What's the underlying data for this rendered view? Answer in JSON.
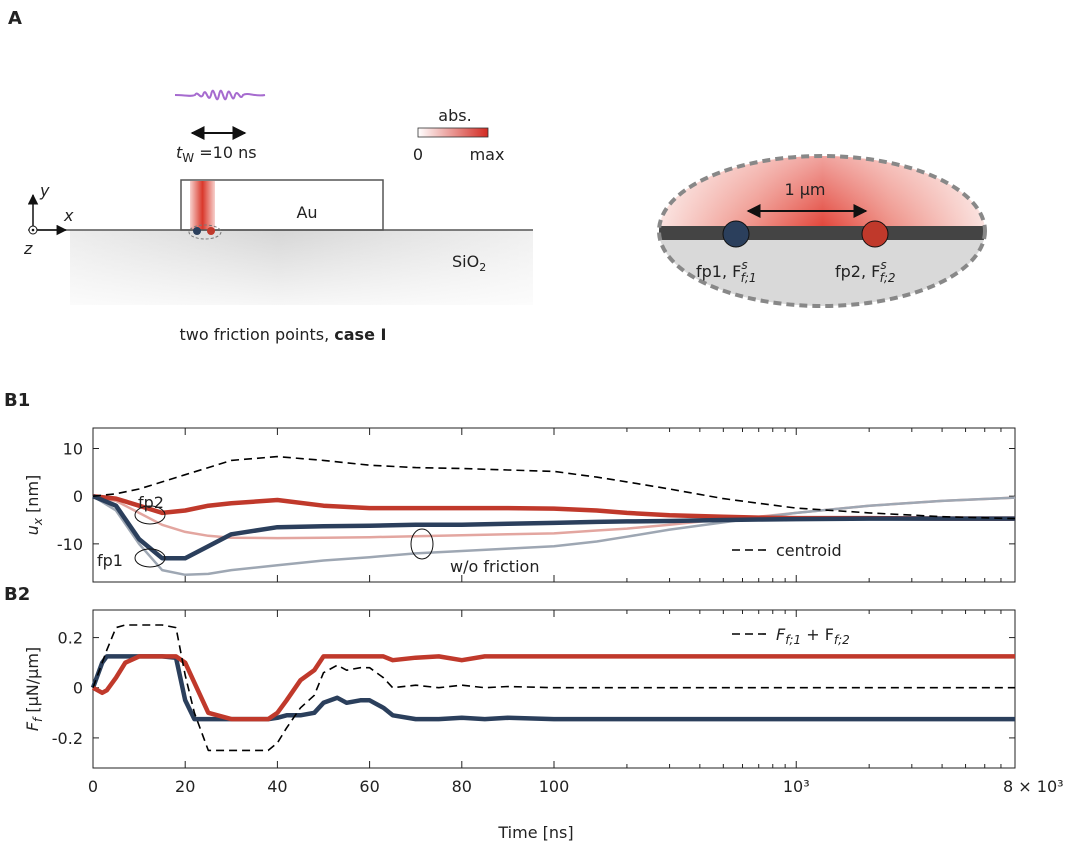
{
  "panels": {
    "a": "A",
    "b1": "B1",
    "b2": "B2"
  },
  "diagram": {
    "pulse_label": [
      "t",
      "W",
      " =10 ns"
    ],
    "colorbar_title": "abs.",
    "colorbar_min": "0",
    "colorbar_max": "max",
    "axis_x": "x",
    "axis_y": "y",
    "axis_z": "z",
    "metal": "Au",
    "substrate": [
      "SiO",
      "2"
    ],
    "caption": [
      "two friction points, ",
      "case I"
    ],
    "distance": "1 μm",
    "fp1": [
      "fp1, F",
      "s",
      "f;1"
    ],
    "fp2": [
      "fp2, F",
      "s",
      "f;2"
    ]
  },
  "chart_data": [
    {
      "type": "line",
      "ylabel": [
        "u",
        "x",
        " [nm]"
      ],
      "ylim": [
        -18,
        14.3
      ],
      "yticks": [
        -10,
        0,
        10
      ],
      "xscale": {
        "type": "linear-log",
        "break": 100
      },
      "xlim": [
        0,
        8000
      ],
      "x": [
        0,
        5,
        10,
        15,
        20,
        25,
        30,
        40,
        50,
        60,
        70,
        80,
        90,
        100,
        150,
        200,
        300,
        500,
        700,
        1000,
        2000,
        4000,
        8000
      ],
      "legend": "lower right",
      "annotations": [
        "fp2",
        "fp1",
        "w/o friction"
      ],
      "series": [
        {
          "color": "#e3a6a0",
          "width": 2.5,
          "values": [
            0,
            -1,
            -3.5,
            -6,
            -7.5,
            -8.3,
            -8.7,
            -8.8,
            -8.7,
            -8.6,
            -8.4,
            -8.2,
            -8,
            -7.8,
            -7.2,
            -6.8,
            -6,
            -4.8,
            -4.3,
            -3.5,
            -2,
            -1,
            -0.3
          ]
        },
        {
          "color": "#9ea7b3",
          "width": 2.5,
          "values": [
            0,
            -3,
            -10,
            -15.5,
            -16.5,
            -16.3,
            -15.5,
            -14.5,
            -13.5,
            -12.8,
            -12,
            -11.5,
            -11,
            -10.5,
            -9.5,
            -8.5,
            -7,
            -5.5,
            -4.5,
            -3.5,
            -2,
            -1,
            -0.3
          ]
        },
        {
          "name": "fp2",
          "color": "#c0392b",
          "width": 4.5,
          "values": [
            0,
            -0.5,
            -2,
            -3.5,
            -3,
            -2,
            -1.5,
            -0.8,
            -2,
            -2.5,
            -2.5,
            -2.5,
            -2.5,
            -2.6,
            -3,
            -3.5,
            -4,
            -4.3,
            -4.5,
            -4.6,
            -4.6,
            -4.7,
            -4.7
          ]
        },
        {
          "name": "fp1",
          "color": "#2b3f5c",
          "width": 4.5,
          "values": [
            0,
            -2,
            -9,
            -13,
            -13,
            -10.5,
            -8,
            -6.5,
            -6.3,
            -6.2,
            -6,
            -6,
            -5.8,
            -5.6,
            -5.4,
            -5.3,
            -5.2,
            -5,
            -4.9,
            -4.8,
            -4.7,
            -4.7,
            -4.7
          ]
        },
        {
          "name": "centroid",
          "color": "#000000",
          "width": 1.6,
          "dash": true,
          "values": [
            0,
            0.5,
            1.5,
            3,
            4.5,
            6,
            7.5,
            8.3,
            7.5,
            6.5,
            6,
            5.8,
            5.5,
            5.2,
            4,
            3,
            1.5,
            -0.5,
            -1.5,
            -2.5,
            -3.5,
            -4.3,
            -4.7
          ]
        }
      ]
    },
    {
      "type": "line",
      "ylabel": [
        "F",
        "f",
        " [μN/μm]"
      ],
      "xlabel": "Time [ns]",
      "ylim": [
        -0.32,
        0.31
      ],
      "yticks": [
        {
          "value": -0.2,
          "label": "-0.2"
        },
        0,
        0.2
      ],
      "xscale": {
        "type": "linear-log",
        "break": 100
      },
      "xlim": [
        0,
        8000
      ],
      "xticks": [
        0,
        20,
        40,
        60,
        80,
        100,
        {
          "value": 1000,
          "label": "10³"
        },
        {
          "value": 8000,
          "label": "8 × 10³"
        }
      ],
      "x": [
        0,
        2,
        3,
        5,
        7,
        10,
        15,
        18,
        20,
        22,
        25,
        30,
        35,
        38,
        40,
        42,
        45,
        48,
        50,
        53,
        55,
        58,
        60,
        63,
        65,
        70,
        75,
        80,
        85,
        90,
        100,
        200,
        500,
        1000,
        8000
      ],
      "legend": "upper right",
      "series": [
        {
          "color": "#2b3f5c",
          "width": 4.5,
          "values": [
            0,
            0.1,
            0.125,
            0.125,
            0.125,
            0.125,
            0.125,
            0.12,
            -0.05,
            -0.125,
            -0.125,
            -0.125,
            -0.125,
            -0.125,
            -0.12,
            -0.11,
            -0.11,
            -0.1,
            -0.06,
            -0.04,
            -0.06,
            -0.05,
            -0.05,
            -0.08,
            -0.11,
            -0.125,
            -0.125,
            -0.12,
            -0.125,
            -0.12,
            -0.125,
            -0.125,
            -0.125,
            -0.125,
            -0.125
          ]
        },
        {
          "color": "#c0392b",
          "width": 4.5,
          "values": [
            0,
            -0.02,
            -0.01,
            0.04,
            0.1,
            0.125,
            0.125,
            0.125,
            0.1,
            0.02,
            -0.1,
            -0.125,
            -0.125,
            -0.125,
            -0.1,
            -0.05,
            0.03,
            0.07,
            0.125,
            0.125,
            0.125,
            0.125,
            0.125,
            0.125,
            0.11,
            0.12,
            0.125,
            0.11,
            0.125,
            0.125,
            0.125,
            0.125,
            0.125,
            0.125,
            0.125
          ]
        },
        {
          "name": [
            "F",
            "f;1",
            " + F",
            "f;2"
          ],
          "color": "#000000",
          "width": 1.6,
          "dash": true,
          "values": [
            0,
            0.1,
            0.15,
            0.24,
            0.25,
            0.25,
            0.25,
            0.24,
            0.05,
            -0.1,
            -0.25,
            -0.25,
            -0.25,
            -0.25,
            -0.22,
            -0.16,
            -0.08,
            -0.03,
            0.06,
            0.09,
            0.07,
            0.08,
            0.08,
            0.04,
            0,
            0.01,
            0,
            0.01,
            0,
            0.005,
            0,
            0,
            0,
            0,
            0
          ]
        }
      ]
    }
  ]
}
